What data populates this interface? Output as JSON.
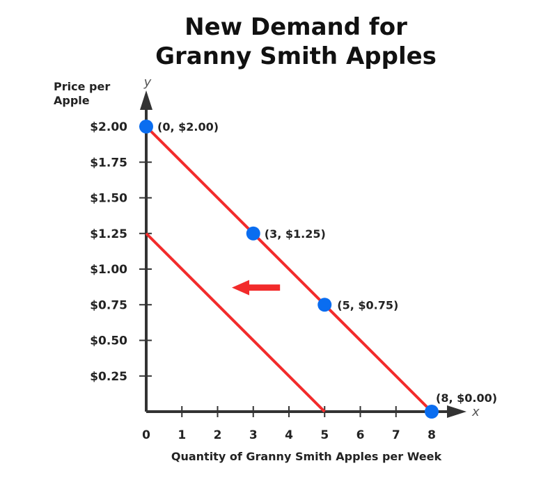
{
  "chart_data": {
    "type": "line",
    "title_lines": [
      "New Demand for",
      "Granny Smith Apples"
    ],
    "ylabel_lines": [
      "Price per",
      "Apple"
    ],
    "xlabel": "Quantity of Granny Smith Apples per Week",
    "x_axis_name": "x",
    "y_axis_name": "y",
    "xlim": [
      0,
      8
    ],
    "ylim": [
      0,
      2
    ],
    "x_ticks": [
      0,
      1,
      2,
      3,
      4,
      5,
      6,
      7,
      8
    ],
    "x_tick_labels": [
      "0",
      "1",
      "2",
      "3",
      "4",
      "5",
      "6",
      "7",
      "8"
    ],
    "y_ticks": [
      0.25,
      0.5,
      0.75,
      1.0,
      1.25,
      1.5,
      1.75,
      2.0
    ],
    "y_tick_labels": [
      "$0.25",
      "$0.50",
      "$0.75",
      "$1.00",
      "$1.25",
      "$1.50",
      "$1.75",
      "$2.00"
    ],
    "grid": false,
    "series": [
      {
        "points": [
          [
            0,
            2.0
          ],
          [
            8,
            0.0
          ]
        ]
      },
      {
        "points": [
          [
            0,
            1.25
          ],
          [
            5,
            0.0
          ]
        ]
      }
    ],
    "marked_points": [
      {
        "x": 0,
        "y": 2.0,
        "label": "(0, $2.00)"
      },
      {
        "x": 3,
        "y": 1.25,
        "label": "(3, $1.25)"
      },
      {
        "x": 5,
        "y": 0.75,
        "label": "(5, $0.75)"
      },
      {
        "x": 8,
        "y": 0.0,
        "label": "(8, $0.00)"
      }
    ],
    "shift_arrow": {
      "from": [
        3.75,
        0.87
      ],
      "to": [
        2.4,
        0.87
      ],
      "direction": "left"
    },
    "colors": {
      "demand_line": "#f22b2b",
      "point": "#0a6df0",
      "axis": "#333333"
    }
  }
}
